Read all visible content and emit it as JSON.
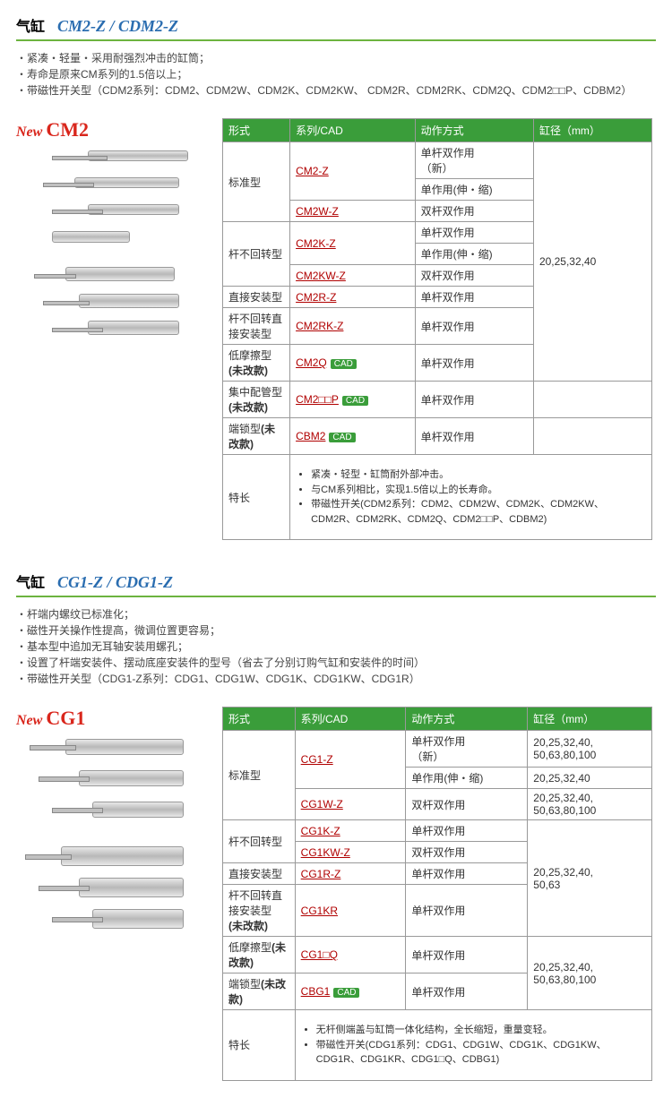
{
  "sections": [
    {
      "zh": "气缸",
      "model": "CM2-Z / CDM2-Z",
      "new_label": "New",
      "new_model": "CM2",
      "bullets": [
        "・紧凑・轻量・采用耐强烈冲击的缸筒；",
        "・寿命是原来CM系列的1.5倍以上；",
        "・带磁性开关型（CDM2系列：CDM2、CDM2W、CDM2K、CDM2KW、 CDM2R、CDM2RK、CDM2Q、CDM2□□P、CDBM2）"
      ],
      "headers": [
        "形式",
        "系列/CAD",
        "动作方式",
        "缸径（mm）"
      ],
      "bore_shared": "20,25,32,40",
      "rows": [
        {
          "form": "标准型",
          "form_rs": 3,
          "series": "CM2-Z",
          "series_rs": 2,
          "cad": false,
          "action": "单杆双作用\n（新）",
          "bore_rs": 9
        },
        {
          "action": "单作用(伸・缩)"
        },
        {
          "series": "CM2W-Z",
          "cad": false,
          "action": "双杆双作用"
        },
        {
          "form": "杆不回转型",
          "form_rs": 3,
          "series": "CM2K-Z",
          "series_rs": 2,
          "cad": false,
          "action": "单杆双作用"
        },
        {
          "action": "单作用(伸・缩)"
        },
        {
          "series": "CM2KW-Z",
          "cad": false,
          "action": "双杆双作用"
        },
        {
          "form": "直接安装型",
          "series": "CM2R-Z",
          "cad": false,
          "action": "单杆双作用"
        },
        {
          "form": "杆不回转直接安装型",
          "series": "CM2RK-Z",
          "cad": false,
          "action": "单杆双作用"
        },
        {
          "form": "低摩擦型(未改款)",
          "form_bold": true,
          "series": "CM2Q",
          "cad": true,
          "action": "单杆双作用"
        },
        {
          "form": "集中配管型(未改款)",
          "form_bold": true,
          "series": "CM2□□P",
          "cad": true,
          "action": "单杆双作用",
          "bore": ""
        },
        {
          "form": "端锁型(未改款)",
          "form_bold": true,
          "series": "CBM2",
          "cad": true,
          "action": "单杆双作用",
          "bore": ""
        }
      ],
      "feat_label": "特长",
      "features": [
        "紧凑・轻型・缸筒耐外部冲击。",
        "与CM系列相比，实现1.5倍以上的长寿命。",
        "带磁性开关(CDM2系列：CDM2、CDM2W、CDM2K、CDM2KW、CDM2R、CDM2RK、CDM2Q、CDM2□□P、CDBM2)"
      ]
    },
    {
      "zh": "气缸",
      "model": "CG1-Z / CDG1-Z",
      "new_label": "New",
      "new_model": "CG1",
      "bullets": [
        "・杆端内螺纹已标准化；",
        "・磁性开关操作性提高，微调位置更容易；",
        "・基本型中追加无耳轴安装用螺孔；",
        "・设置了杆端安装件、摆动底座安装件的型号（省去了分别订购气缸和安装件的时间）",
        "・带磁性开关型（CDG1-Z系列：CDG1、CDG1W、CDG1K、CDG1KW、CDG1R）"
      ],
      "headers": [
        "形式",
        "系列/CAD",
        "动作方式",
        "缸径（mm）"
      ],
      "rows": [
        {
          "form": "标准型",
          "form_rs": 3,
          "series": "CG1-Z",
          "series_rs": 2,
          "cad": false,
          "action": "单杆双作用\n（新）",
          "bore": "20,25,32,40,\n50,63,80,100"
        },
        {
          "action": "单作用(伸・缩)",
          "bore": "20,25,32,40"
        },
        {
          "series": "CG1W-Z",
          "cad": false,
          "action": "双杆双作用",
          "bore": "20,25,32,40,\n50,63,80,100"
        },
        {
          "form": "杆不回转型",
          "form_rs": 2,
          "series": "CG1K-Z",
          "cad": false,
          "action": "单杆双作用",
          "bore": "20,25,32,40,\n50,63",
          "bore_rs": 4
        },
        {
          "series": "CG1KW-Z",
          "cad": false,
          "action": "双杆双作用"
        },
        {
          "form": "直接安装型",
          "series": "CG1R-Z",
          "cad": false,
          "action": "单杆双作用"
        },
        {
          "form": "杆不回转直接安装型\n(未改款)",
          "form_bold": true,
          "series": "CG1KR",
          "cad": false,
          "action": "单杆双作用"
        },
        {
          "form": "低摩擦型(未改款)",
          "form_bold": true,
          "series": "CG1□Q",
          "cad": false,
          "action": "单杆双作用",
          "bore": "20,25,32,40,\n50,63,80,100",
          "bore_rs": 2
        },
        {
          "form": "端锁型(未改款)",
          "form_bold": true,
          "series": "CBG1",
          "cad": true,
          "action": "单杆双作用"
        }
      ],
      "feat_label": "特长",
      "features": [
        "无杆侧端盖与缸筒一体化结构，全长缩短，重量变轻。",
        "带磁性开关(CDG1系列：CDG1、CDG1W、CDG1K、CDG1KW、CDG1R、CDG1KR、CDG1□Q、CDBG1)"
      ]
    }
  ],
  "cad_text": "CAD"
}
